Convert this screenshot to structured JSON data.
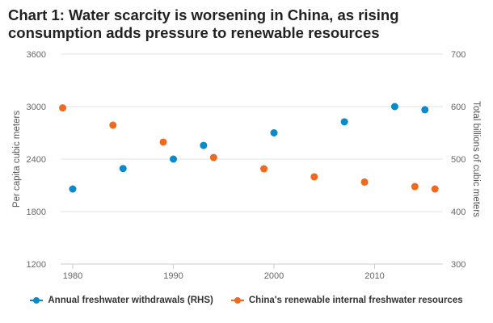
{
  "chart_data": {
    "type": "scatter",
    "title": "Chart 1: Water scarcity is worsening in China, as rising consumption adds pressure to renewable resources",
    "ylabel": "Per capita cubic meters",
    "y2label": "Total billions of cubic meters",
    "xlim": [
      1978,
      2017
    ],
    "ylim": [
      1200,
      3600
    ],
    "y2lim": [
      300,
      700
    ],
    "xticks": [
      1980,
      1990,
      2000,
      2010
    ],
    "yticks": [
      1200,
      1800,
      2400,
      3000,
      3600
    ],
    "y2ticks": [
      300,
      400,
      500,
      600,
      700
    ],
    "grid": true,
    "legend_position": "bottom",
    "series": [
      {
        "name": "Annual freshwater withdrawals (RHS)",
        "axis": "right",
        "color": "#0a8ac8",
        "x": [
          1980,
          1985,
          1990,
          1993,
          2000,
          2007,
          2012,
          2015
        ],
        "values": [
          443,
          482,
          500,
          526,
          550,
          571,
          600,
          594
        ]
      },
      {
        "name": "China's renewable internal freshwater resources",
        "axis": "left",
        "color": "#ee6a1f",
        "x": [
          1979,
          1984,
          1989,
          1994,
          1999,
          2004,
          2009,
          2014,
          2016
        ],
        "values": [
          2985,
          2788,
          2594,
          2418,
          2289,
          2197,
          2138,
          2086,
          2058
        ]
      }
    ]
  }
}
